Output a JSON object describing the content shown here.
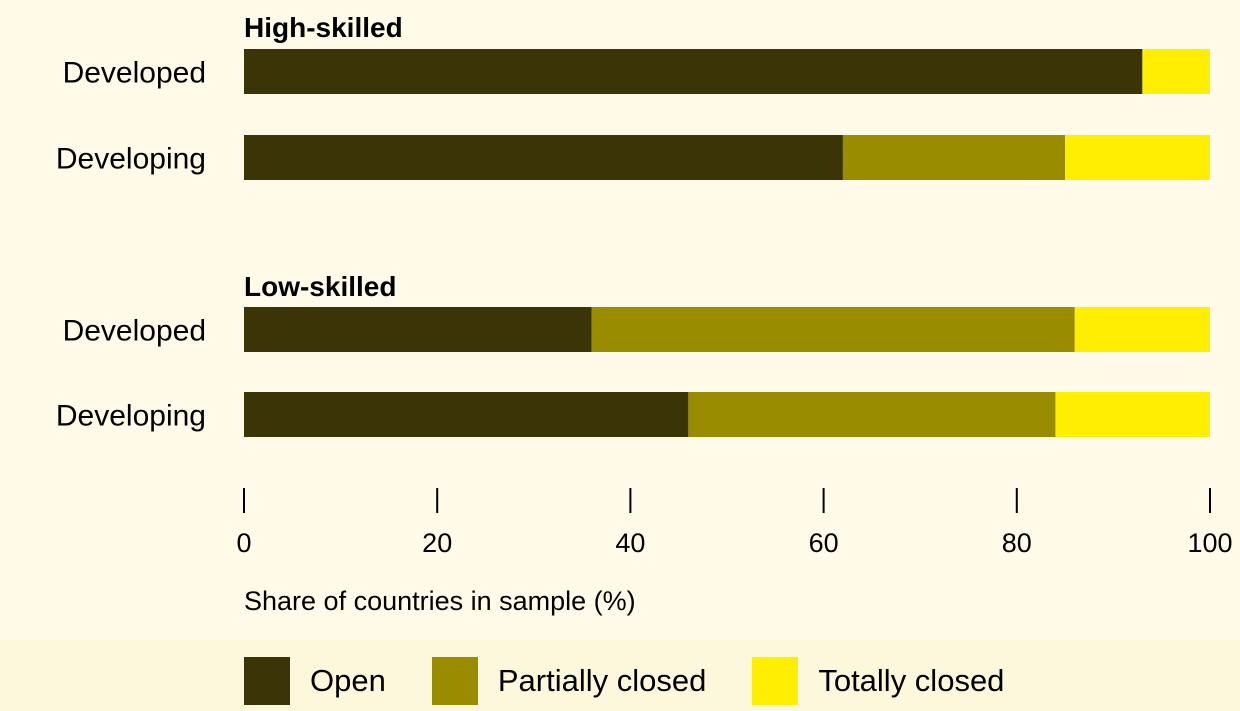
{
  "chart_data": {
    "type": "bar",
    "orientation": "horizontal",
    "stacked": true,
    "groups": [
      {
        "title": "High-skilled",
        "categories": [
          "Developed",
          "Developing"
        ],
        "series": [
          {
            "name": "Open",
            "values": [
              93,
              62
            ]
          },
          {
            "name": "Partially closed",
            "values": [
              0,
              23
            ]
          },
          {
            "name": "Totally closed",
            "values": [
              7,
              15
            ]
          }
        ]
      },
      {
        "title": "Low-skilled",
        "categories": [
          "Developed",
          "Developing"
        ],
        "series": [
          {
            "name": "Open",
            "values": [
              36,
              46
            ]
          },
          {
            "name": "Partially closed",
            "values": [
              50,
              38
            ]
          },
          {
            "name": "Totally closed",
            "values": [
              14,
              16
            ]
          }
        ]
      }
    ],
    "xlim": [
      0,
      100
    ],
    "xticks": [
      0,
      20,
      40,
      60,
      80,
      100
    ],
    "xlabel": "Share of countries in sample (%)",
    "grid": false,
    "legend_position": "bottom",
    "colors": {
      "Open": "#3b3406",
      "Partially closed": "#9a8c00",
      "Totally closed": "#ffee00"
    }
  },
  "legend": {
    "items": [
      {
        "label": "Open",
        "color": "#3b3406"
      },
      {
        "label": "Partially closed",
        "color": "#9a8c00"
      },
      {
        "label": "Totally closed",
        "color": "#ffee00"
      }
    ]
  }
}
